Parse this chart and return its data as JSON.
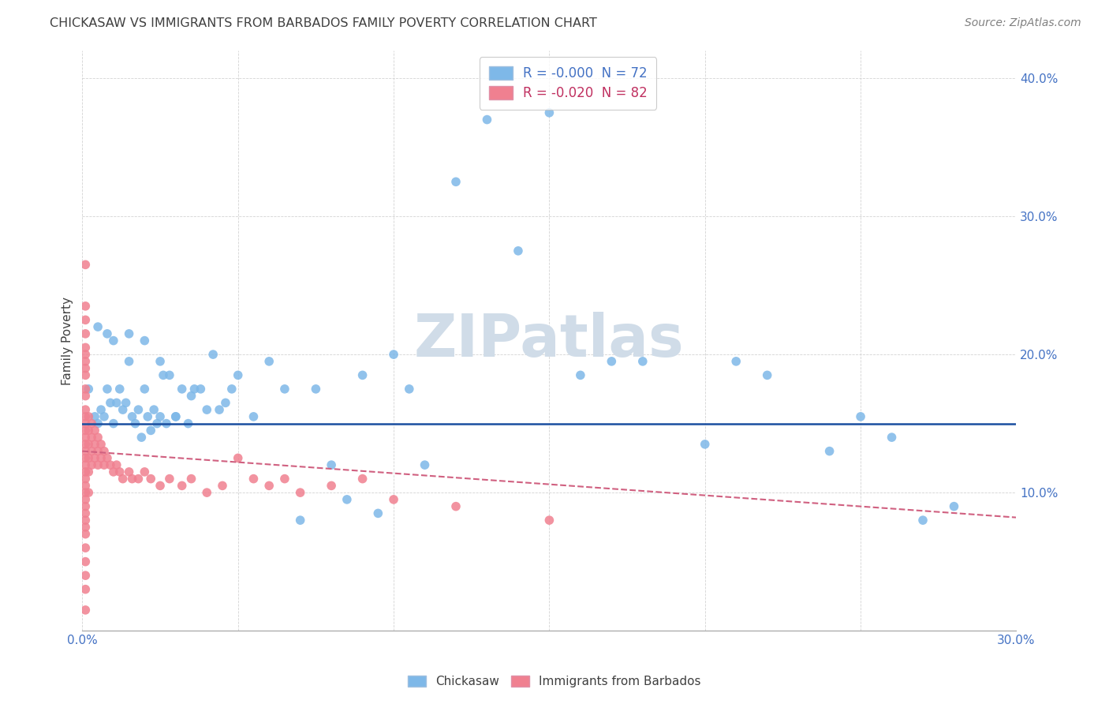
{
  "title": "CHICKASAW VS IMMIGRANTS FROM BARBADOS FAMILY POVERTY CORRELATION CHART",
  "source": "Source: ZipAtlas.com",
  "ylabel": "Family Poverty",
  "xlim": [
    0.0,
    0.3
  ],
  "ylim": [
    0.0,
    0.42
  ],
  "xticks": [
    0.0,
    0.05,
    0.1,
    0.15,
    0.2,
    0.25,
    0.3
  ],
  "yticks": [
    0.0,
    0.1,
    0.2,
    0.3,
    0.4
  ],
  "chickasaw_color": "#7eb8e8",
  "barbados_color": "#f08090",
  "trendline_chickasaw_color": "#1a4fa0",
  "trendline_barbados_color": "#d06080",
  "watermark": "ZIPatlas",
  "watermark_color": "#d0dce8",
  "chickasaw_trendline_y": 0.15,
  "barbados_trendline_start": 0.13,
  "barbados_trendline_end": 0.082,
  "chickasaw_x": [
    0.002,
    0.004,
    0.005,
    0.006,
    0.007,
    0.008,
    0.009,
    0.01,
    0.011,
    0.012,
    0.013,
    0.014,
    0.015,
    0.016,
    0.017,
    0.018,
    0.019,
    0.02,
    0.021,
    0.022,
    0.023,
    0.024,
    0.025,
    0.026,
    0.027,
    0.028,
    0.03,
    0.032,
    0.034,
    0.036,
    0.038,
    0.04,
    0.042,
    0.044,
    0.046,
    0.048,
    0.05,
    0.055,
    0.06,
    0.065,
    0.07,
    0.075,
    0.08,
    0.085,
    0.09,
    0.095,
    0.1,
    0.105,
    0.11,
    0.12,
    0.13,
    0.14,
    0.15,
    0.16,
    0.17,
    0.18,
    0.2,
    0.21,
    0.22,
    0.24,
    0.25,
    0.26,
    0.27,
    0.28,
    0.005,
    0.008,
    0.01,
    0.015,
    0.02,
    0.025,
    0.03,
    0.035
  ],
  "chickasaw_y": [
    0.175,
    0.155,
    0.15,
    0.16,
    0.155,
    0.175,
    0.165,
    0.15,
    0.165,
    0.175,
    0.16,
    0.165,
    0.195,
    0.155,
    0.15,
    0.16,
    0.14,
    0.175,
    0.155,
    0.145,
    0.16,
    0.15,
    0.195,
    0.185,
    0.15,
    0.185,
    0.155,
    0.175,
    0.15,
    0.175,
    0.175,
    0.16,
    0.2,
    0.16,
    0.165,
    0.175,
    0.185,
    0.155,
    0.195,
    0.175,
    0.08,
    0.175,
    0.12,
    0.095,
    0.185,
    0.085,
    0.2,
    0.175,
    0.12,
    0.325,
    0.37,
    0.275,
    0.375,
    0.185,
    0.195,
    0.195,
    0.135,
    0.195,
    0.185,
    0.13,
    0.155,
    0.14,
    0.08,
    0.09,
    0.22,
    0.215,
    0.21,
    0.215,
    0.21,
    0.155,
    0.155,
    0.17
  ],
  "barbados_x": [
    0.001,
    0.001,
    0.001,
    0.001,
    0.001,
    0.001,
    0.001,
    0.001,
    0.001,
    0.001,
    0.001,
    0.001,
    0.001,
    0.001,
    0.001,
    0.001,
    0.001,
    0.001,
    0.001,
    0.001,
    0.001,
    0.001,
    0.001,
    0.001,
    0.001,
    0.001,
    0.001,
    0.001,
    0.001,
    0.001,
    0.001,
    0.001,
    0.001,
    0.001,
    0.001,
    0.002,
    0.002,
    0.002,
    0.002,
    0.002,
    0.002,
    0.003,
    0.003,
    0.003,
    0.003,
    0.004,
    0.004,
    0.004,
    0.005,
    0.005,
    0.005,
    0.006,
    0.006,
    0.007,
    0.007,
    0.008,
    0.009,
    0.01,
    0.011,
    0.012,
    0.013,
    0.015,
    0.016,
    0.018,
    0.02,
    0.022,
    0.025,
    0.028,
    0.032,
    0.035,
    0.04,
    0.045,
    0.05,
    0.055,
    0.06,
    0.065,
    0.07,
    0.08,
    0.09,
    0.1,
    0.12,
    0.15
  ],
  "barbados_y": [
    0.265,
    0.235,
    0.225,
    0.215,
    0.205,
    0.2,
    0.195,
    0.19,
    0.185,
    0.175,
    0.17,
    0.16,
    0.155,
    0.15,
    0.145,
    0.14,
    0.135,
    0.13,
    0.125,
    0.12,
    0.115,
    0.11,
    0.105,
    0.1,
    0.095,
    0.09,
    0.085,
    0.08,
    0.075,
    0.07,
    0.06,
    0.05,
    0.04,
    0.03,
    0.015,
    0.155,
    0.145,
    0.135,
    0.125,
    0.115,
    0.1,
    0.15,
    0.14,
    0.13,
    0.12,
    0.145,
    0.135,
    0.125,
    0.14,
    0.13,
    0.12,
    0.135,
    0.125,
    0.13,
    0.12,
    0.125,
    0.12,
    0.115,
    0.12,
    0.115,
    0.11,
    0.115,
    0.11,
    0.11,
    0.115,
    0.11,
    0.105,
    0.11,
    0.105,
    0.11,
    0.1,
    0.105,
    0.125,
    0.11,
    0.105,
    0.11,
    0.1,
    0.105,
    0.11,
    0.095,
    0.09,
    0.08
  ]
}
